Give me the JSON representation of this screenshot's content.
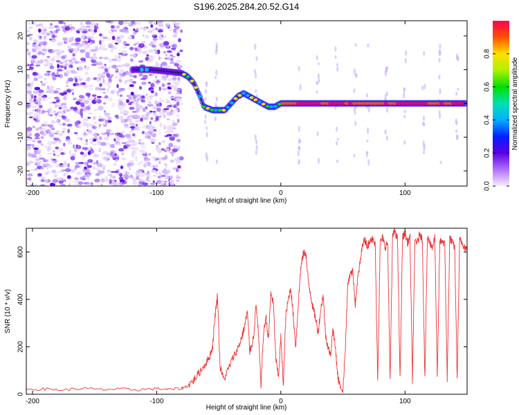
{
  "figure": {
    "title": "S196.2025.284.20.52.G14"
  },
  "chart_data": [
    {
      "type": "heatmap",
      "title": "S196.2025.284.20.52.G14",
      "xlabel": "Height of straight line (km)",
      "ylabel": "Frequency (Hz)",
      "xlim": [
        -205,
        150
      ],
      "ylim": [
        -24.5,
        24.5
      ],
      "xticks": [
        -200,
        -100,
        0,
        100
      ],
      "yticks": [
        -20,
        -10,
        0,
        10,
        20
      ],
      "colorbar": {
        "label": "Normalized spectral amplitude",
        "range": [
          0.0,
          1.0
        ],
        "ticks": [
          0.0,
          0.2,
          0.4,
          0.6,
          0.8
        ]
      },
      "ridge": {
        "description": "dominant tone frequency vs height",
        "x": [
          -120,
          -110,
          -105,
          -80,
          -75,
          -70,
          -65,
          -62,
          -55,
          -50,
          -45,
          -40,
          -35,
          -30,
          -25,
          -20,
          -15,
          -10,
          -5,
          0,
          10,
          20,
          40,
          60,
          80,
          100,
          120,
          150
        ],
        "y": [
          10,
          10,
          10,
          9,
          8,
          6,
          2,
          -1,
          -2,
          -2,
          -2,
          0,
          2,
          3,
          2,
          1,
          0,
          -1,
          -1,
          0,
          0,
          0,
          0,
          0,
          0,
          0,
          0,
          0
        ]
      },
      "noise_region_x": [
        -205,
        -80
      ]
    },
    {
      "type": "line",
      "title": "",
      "xlabel": "Height of straight line (km)",
      "ylabel": "SNR (10 * v/v)",
      "xlim": [
        -205,
        150
      ],
      "ylim": [
        0,
        700
      ],
      "xticks": [
        -200,
        -100,
        0,
        100
      ],
      "yticks": [
        0,
        200,
        400,
        600
      ],
      "series": [
        {
          "name": "SNR",
          "color": "#ee3333",
          "x": [
            -205,
            -190,
            -175,
            -160,
            -145,
            -130,
            -115,
            -100,
            -90,
            -80,
            -75,
            -70,
            -66,
            -62,
            -58,
            -55,
            -53,
            -51,
            -49,
            -46,
            -42,
            -38,
            -34,
            -31,
            -29,
            -27,
            -25,
            -22,
            -20,
            -18,
            -16,
            -14,
            -12,
            -10,
            -8,
            -6,
            -4,
            -2,
            0,
            2,
            4,
            6,
            8,
            10,
            12,
            14,
            16,
            18,
            20,
            22,
            24,
            26,
            28,
            30,
            32,
            34,
            36,
            38,
            40,
            42,
            44,
            46,
            48,
            50,
            52,
            54,
            56,
            58,
            60,
            62,
            64,
            66,
            68,
            70,
            72,
            74,
            76,
            78,
            80,
            82,
            84,
            86,
            88,
            90,
            92,
            94,
            96,
            98,
            100,
            102,
            104,
            106,
            108,
            110,
            112,
            114,
            116,
            118,
            120,
            122,
            124,
            126,
            128,
            130,
            132,
            134,
            136,
            138,
            140,
            142,
            144,
            146,
            148,
            150
          ],
          "y": [
            20,
            22,
            18,
            25,
            20,
            22,
            19,
            24,
            20,
            25,
            35,
            60,
            90,
            120,
            150,
            200,
            330,
            420,
            120,
            60,
            110,
            160,
            200,
            250,
            290,
            350,
            180,
            240,
            380,
            250,
            40,
            250,
            330,
            230,
            430,
            380,
            150,
            70,
            240,
            40,
            330,
            400,
            450,
            330,
            200,
            380,
            530,
            590,
            600,
            480,
            420,
            360,
            320,
            260,
            350,
            420,
            250,
            200,
            160,
            280,
            190,
            70,
            30,
            10,
            210,
            470,
            500,
            520,
            380,
            490,
            560,
            640,
            650,
            620,
            660,
            650,
            630,
            60,
            640,
            660,
            620,
            640,
            60,
            670,
            690,
            650,
            60,
            660,
            680,
            640,
            660,
            60,
            650,
            640,
            680,
            650,
            60,
            660,
            640,
            620,
            660,
            60,
            640,
            650,
            630,
            60,
            660,
            640,
            620,
            60,
            650,
            640,
            620,
            610
          ]
        }
      ]
    }
  ]
}
